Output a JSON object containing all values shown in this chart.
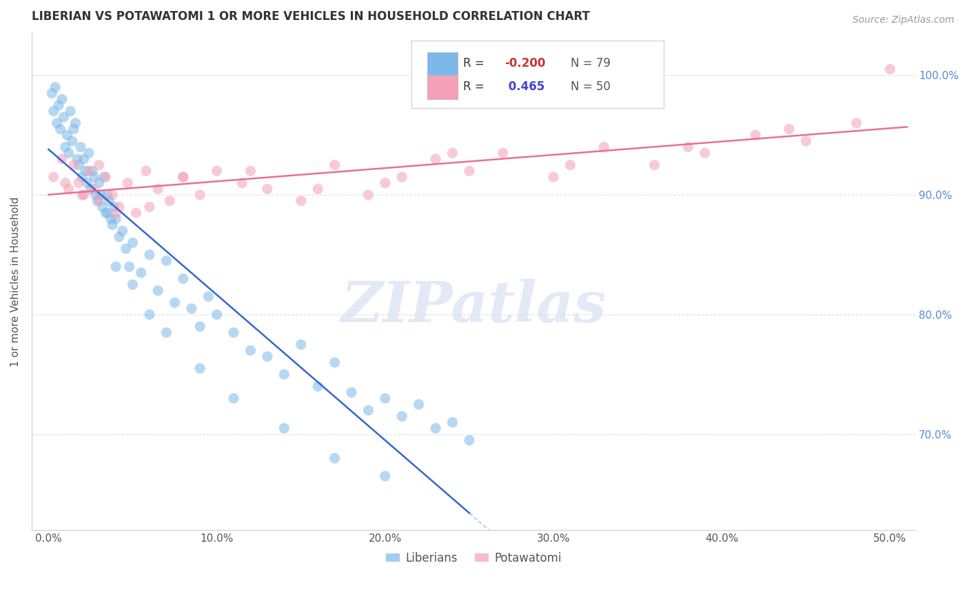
{
  "title": "LIBERIAN VS POTAWATOMI 1 OR MORE VEHICLES IN HOUSEHOLD CORRELATION CHART",
  "source_text": "Source: ZipAtlas.com",
  "ylabel": "1 or more Vehicles in Household",
  "x_tick_labels": [
    "0.0%",
    "10.0%",
    "20.0%",
    "30.0%",
    "40.0%",
    "50.0%"
  ],
  "x_tick_values": [
    0.0,
    10.0,
    20.0,
    30.0,
    40.0,
    50.0
  ],
  "y_tick_labels": [
    "100.0%",
    "90.0%",
    "80.0%",
    "70.0%"
  ],
  "y_tick_values": [
    100.0,
    90.0,
    80.0,
    70.0
  ],
  "xlim": [
    -1.0,
    51.5
  ],
  "ylim": [
    62.0,
    103.5
  ],
  "blue_color": "#7db8e8",
  "pink_color": "#f4a0b8",
  "blue_line_color": "#3366cc",
  "pink_line_color": "#e87090",
  "dash_line_color": "#aaccee",
  "watermark": "ZIPatlas",
  "watermark_color": "#d5dff0",
  "grid_color": "#e0e0e0",
  "grid_style": "--",
  "liberian_x": [
    0.2,
    0.3,
    0.4,
    0.5,
    0.6,
    0.7,
    0.8,
    0.9,
    1.0,
    1.1,
    1.2,
    1.3,
    1.4,
    1.5,
    1.6,
    1.7,
    1.8,
    1.9,
    2.0,
    2.1,
    2.2,
    2.3,
    2.4,
    2.5,
    2.6,
    2.7,
    2.8,
    2.9,
    3.0,
    3.1,
    3.2,
    3.3,
    3.4,
    3.5,
    3.6,
    3.7,
    3.8,
    3.9,
    4.0,
    4.2,
    4.4,
    4.6,
    4.8,
    5.0,
    5.5,
    6.0,
    6.5,
    7.0,
    7.5,
    8.0,
    8.5,
    9.0,
    9.5,
    10.0,
    11.0,
    12.0,
    13.0,
    14.0,
    15.0,
    16.0,
    17.0,
    18.0,
    19.0,
    20.0,
    21.0,
    22.0,
    23.0,
    24.0,
    25.0,
    3.5,
    4.0,
    5.0,
    6.0,
    7.0,
    9.0,
    11.0,
    14.0,
    17.0,
    20.0
  ],
  "liberian_y": [
    98.5,
    97.0,
    99.0,
    96.0,
    97.5,
    95.5,
    98.0,
    96.5,
    94.0,
    95.0,
    93.5,
    97.0,
    94.5,
    95.5,
    96.0,
    93.0,
    92.5,
    94.0,
    91.5,
    93.0,
    92.0,
    91.0,
    93.5,
    90.5,
    92.0,
    91.5,
    90.0,
    89.5,
    91.0,
    90.0,
    89.0,
    91.5,
    88.5,
    90.0,
    89.5,
    88.0,
    87.5,
    89.0,
    88.0,
    86.5,
    87.0,
    85.5,
    84.0,
    86.0,
    83.5,
    85.0,
    82.0,
    84.5,
    81.0,
    83.0,
    80.5,
    79.0,
    81.5,
    80.0,
    78.5,
    77.0,
    76.5,
    75.0,
    77.5,
    74.0,
    76.0,
    73.5,
    72.0,
    73.0,
    71.5,
    72.5,
    70.5,
    71.0,
    69.5,
    88.5,
    84.0,
    82.5,
    80.0,
    78.5,
    75.5,
    73.0,
    70.5,
    68.0,
    66.5
  ],
  "potawatomi_x": [
    0.3,
    0.8,
    1.2,
    1.5,
    1.8,
    2.1,
    2.4,
    2.7,
    3.0,
    3.4,
    3.8,
    4.2,
    4.7,
    5.2,
    5.8,
    6.5,
    7.2,
    8.0,
    9.0,
    10.0,
    11.5,
    13.0,
    15.0,
    17.0,
    19.0,
    21.0,
    23.0,
    25.0,
    27.0,
    30.0,
    33.0,
    36.0,
    39.0,
    42.0,
    45.0,
    48.0,
    50.0,
    1.0,
    2.0,
    3.0,
    4.0,
    6.0,
    8.0,
    12.0,
    16.0,
    20.0,
    24.0,
    31.0,
    38.0,
    44.0
  ],
  "potawatomi_y": [
    91.5,
    93.0,
    90.5,
    92.5,
    91.0,
    90.0,
    92.0,
    90.5,
    89.5,
    91.5,
    90.0,
    89.0,
    91.0,
    88.5,
    92.0,
    90.5,
    89.5,
    91.5,
    90.0,
    92.0,
    91.0,
    90.5,
    89.5,
    92.5,
    90.0,
    91.5,
    93.0,
    92.0,
    93.5,
    91.5,
    94.0,
    92.5,
    93.5,
    95.0,
    94.5,
    96.0,
    100.5,
    91.0,
    90.0,
    92.5,
    88.5,
    89.0,
    91.5,
    92.0,
    90.5,
    91.0,
    93.5,
    92.5,
    94.0,
    95.5
  ]
}
